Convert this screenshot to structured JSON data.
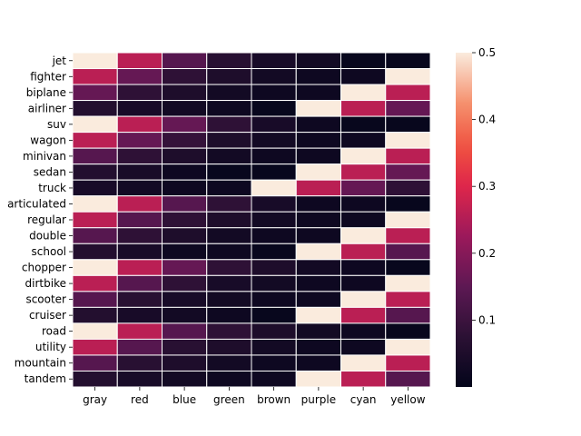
{
  "chart_data": {
    "type": "heatmap",
    "title": "",
    "xlabel": "",
    "ylabel": "",
    "columns": [
      "gray",
      "red",
      "blue",
      "green",
      "brown",
      "purple",
      "cyan",
      "yellow"
    ],
    "rows": [
      "jet",
      "fighter",
      "biplane",
      "airliner",
      "suv",
      "wagon",
      "minivan",
      "sedan",
      "truck",
      "articulated",
      "regular",
      "double",
      "school",
      "chopper",
      "dirtbike",
      "scooter",
      "cruiser",
      "road",
      "utility",
      "mountain",
      "tandem"
    ],
    "values": [
      [
        0.5,
        0.26,
        0.14,
        0.07,
        0.04,
        0.03,
        0.01,
        0.01
      ],
      [
        0.26,
        0.16,
        0.08,
        0.05,
        0.03,
        0.02,
        0.02,
        0.5
      ],
      [
        0.16,
        0.08,
        0.05,
        0.03,
        0.02,
        0.02,
        0.5,
        0.26
      ],
      [
        0.06,
        0.04,
        0.03,
        0.02,
        0.01,
        0.5,
        0.26,
        0.16
      ],
      [
        0.5,
        0.26,
        0.16,
        0.08,
        0.04,
        0.02,
        0.01,
        0.01
      ],
      [
        0.26,
        0.16,
        0.09,
        0.05,
        0.03,
        0.02,
        0.02,
        0.5
      ],
      [
        0.14,
        0.08,
        0.05,
        0.03,
        0.02,
        0.02,
        0.5,
        0.26
      ],
      [
        0.06,
        0.04,
        0.02,
        0.01,
        0.01,
        0.5,
        0.26,
        0.16
      ],
      [
        0.04,
        0.03,
        0.02,
        0.02,
        0.5,
        0.26,
        0.16,
        0.08
      ],
      [
        0.5,
        0.26,
        0.14,
        0.08,
        0.04,
        0.02,
        0.02,
        0.01
      ],
      [
        0.26,
        0.14,
        0.08,
        0.05,
        0.03,
        0.02,
        0.02,
        0.5
      ],
      [
        0.14,
        0.08,
        0.05,
        0.03,
        0.02,
        0.02,
        0.5,
        0.26
      ],
      [
        0.06,
        0.04,
        0.02,
        0.02,
        0.01,
        0.5,
        0.26,
        0.14
      ],
      [
        0.5,
        0.26,
        0.16,
        0.08,
        0.05,
        0.03,
        0.02,
        0.01
      ],
      [
        0.26,
        0.14,
        0.08,
        0.04,
        0.03,
        0.02,
        0.02,
        0.5
      ],
      [
        0.14,
        0.07,
        0.04,
        0.03,
        0.02,
        0.02,
        0.5,
        0.26
      ],
      [
        0.06,
        0.04,
        0.03,
        0.02,
        0.01,
        0.5,
        0.26,
        0.14
      ],
      [
        0.5,
        0.26,
        0.14,
        0.08,
        0.05,
        0.03,
        0.02,
        0.01
      ],
      [
        0.26,
        0.14,
        0.07,
        0.05,
        0.03,
        0.02,
        0.02,
        0.5
      ],
      [
        0.14,
        0.07,
        0.05,
        0.03,
        0.02,
        0.02,
        0.5,
        0.26
      ],
      [
        0.06,
        0.04,
        0.03,
        0.02,
        0.02,
        0.5,
        0.26,
        0.14
      ]
    ],
    "colorbar": {
      "min": 0.0,
      "max": 0.5,
      "ticks": [
        0.1,
        0.2,
        0.3,
        0.4,
        0.5
      ],
      "tick_labels": [
        "0.1",
        "0.2",
        "0.3",
        "0.4",
        "0.5"
      ],
      "colormap": "rocket"
    },
    "grid_line_color": "#ffffff"
  }
}
